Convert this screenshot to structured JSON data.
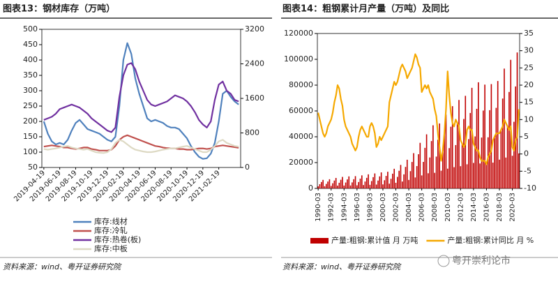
{
  "chart_data": [
    {
      "type": "line",
      "title": "图表13：钢材库存（万吨）",
      "source": "资料来源：wind、粤开证券研究院",
      "legend": "bottom",
      "categories": [
        "2019-04-19",
        null,
        null,
        null,
        "2019-06-19",
        null,
        null,
        null,
        "2019-08-19",
        null,
        null,
        null,
        "2019-10-19",
        null,
        null,
        null,
        "2019-12-19",
        null,
        null,
        null,
        "2020-02-19",
        null,
        null,
        null,
        "2020-04-19",
        null,
        null,
        null,
        "2020-06-19",
        null,
        null,
        null,
        "2020-08-19",
        null,
        null,
        null,
        "2020-10-19",
        null,
        null,
        null,
        "2020-12-19",
        null,
        null,
        null,
        "2021-02-19",
        null,
        null,
        null,
        null,
        null
      ],
      "ylim": [
        50,
        500
      ],
      "yticks": [
        50,
        100,
        150,
        200,
        250,
        300,
        350,
        400,
        450,
        500
      ],
      "y2lim": [
        0,
        3200
      ],
      "y2ticks": [
        0,
        800,
        1600,
        2400,
        3200
      ],
      "series": [
        {
          "name": "库存:线材",
          "color": "#4f81bd",
          "values": [
            200,
            160,
            135,
            125,
            130,
            125,
            140,
            170,
            195,
            205,
            190,
            175,
            170,
            165,
            160,
            150,
            140,
            135,
            150,
            250,
            400,
            455,
            420,
            340,
            290,
            250,
            210,
            200,
            205,
            200,
            195,
            185,
            180,
            180,
            175,
            160,
            145,
            120,
            100,
            85,
            78,
            80,
            95,
            130,
            200,
            290,
            300,
            280,
            265,
            255
          ]
        },
        {
          "name": "库存:冷轧",
          "color": "#c0504d",
          "values": [
            118,
            120,
            122,
            120,
            118,
            115,
            115,
            112,
            110,
            112,
            115,
            115,
            110,
            108,
            105,
            105,
            105,
            108,
            120,
            140,
            150,
            155,
            150,
            145,
            140,
            135,
            130,
            125,
            120,
            118,
            115,
            113,
            112,
            112,
            110,
            110,
            108,
            108,
            110,
            112,
            112,
            110,
            112,
            118,
            120,
            122,
            120,
            118,
            116,
            114
          ]
        },
        {
          "name": "库存:热卷(板)",
          "color": "#7030a0",
          "values": [
            205,
            210,
            215,
            225,
            240,
            245,
            250,
            255,
            250,
            245,
            235,
            225,
            210,
            200,
            190,
            180,
            170,
            165,
            180,
            280,
            350,
            385,
            390,
            370,
            330,
            300,
            270,
            255,
            250,
            255,
            260,
            265,
            275,
            285,
            280,
            275,
            265,
            250,
            230,
            205,
            190,
            180,
            200,
            270,
            320,
            330,
            300,
            290,
            270,
            265
          ]
        },
        {
          "name": "库存:中板",
          "color": "#ddd9c3",
          "values": [
            110,
            108,
            110,
            112,
            115,
            118,
            120,
            115,
            112,
            110,
            108,
            110,
            105,
            100,
            98,
            97,
            100,
            110,
            130,
            140,
            135,
            125,
            115,
            108,
            105,
            102,
            100,
            100,
            102,
            105,
            108,
            110,
            112,
            112,
            115,
            118,
            120,
            115,
            110,
            105,
            100,
            100,
            108,
            120,
            135,
            140,
            130,
            125,
            120,
            118
          ]
        }
      ]
    },
    {
      "type": "bar",
      "title": "图表14：粗钢累计月产量（万吨）及同比",
      "source": "资料来源：wind、粤开证券研究院",
      "legend": "bottom",
      "categories": [
        "1990-03",
        null,
        null,
        null,
        null,
        null,
        null,
        null,
        "1992-03",
        null,
        null,
        null,
        null,
        null,
        null,
        null,
        "1994-03",
        null,
        null,
        null,
        null,
        null,
        null,
        null,
        "1996-03",
        null,
        null,
        null,
        null,
        null,
        null,
        null,
        "1998-03",
        null,
        null,
        null,
        null,
        null,
        null,
        null,
        "2000-03",
        null,
        null,
        null,
        null,
        null,
        null,
        null,
        "2002-03",
        null,
        null,
        null,
        null,
        null,
        null,
        null,
        "2004-03",
        null,
        null,
        null,
        null,
        null,
        null,
        null,
        "2006-03",
        null,
        null,
        null,
        null,
        null,
        null,
        null,
        "2008-03",
        null,
        null,
        null,
        null,
        null,
        null,
        null,
        "2010-03",
        null,
        null,
        null,
        null,
        null,
        null,
        null,
        "2012-03",
        null,
        null,
        null,
        null,
        null,
        null,
        null,
        "2014-03",
        null,
        null,
        null,
        null,
        null,
        null,
        null,
        "2016-03",
        null,
        null,
        null,
        null,
        null,
        null,
        null,
        "2018-03",
        null,
        null,
        null,
        null,
        null,
        null,
        null,
        "2020-03",
        null,
        null,
        null,
        null
      ],
      "ylim": [
        0,
        120000
      ],
      "yticks": [
        0,
        20000,
        40000,
        60000,
        80000,
        100000,
        120000
      ],
      "y2lim": [
        -10,
        35
      ],
      "y2ticks": [
        -10,
        -5,
        0,
        5,
        10,
        15,
        20,
        25,
        30,
        35
      ],
      "series": [
        {
          "name": "产量:粗钢:累计值 月 万吨",
          "color": "#c00000",
          "type": "bar",
          "values": [
            1584,
            3234,
            4950,
            6600,
            1704,
            3479,
            5325,
            7100,
            1944,
            3969,
            6075,
            8100,
            2136,
            4361,
            6675,
            8900,
            2232,
            4557,
            6975,
            9300,
            2280,
            4655,
            7125,
            9500,
            2424,
            4949,
            7575,
            10100,
            2616,
            5341,
            8175,
            10900,
            2784,
            5684,
            8700,
            11600,
            2976,
            6076,
            9300,
            12400,
            3096,
            6321,
            9675,
            12900,
            3648,
            7448,
            11400,
            15200,
            4368,
            8918,
            13650,
            18200,
            5328,
            10878,
            16650,
            22200,
            6552,
            13377,
            20475,
            27300,
            8472,
            17297,
            26475,
            35300,
            10056,
            20531,
            31425,
            41900,
            11736,
            23961,
            36675,
            48900,
            12072,
            24647,
            37725,
            50300,
            13728,
            28028,
            42900,
            57200,
            15288,
            31213,
            47775,
            63700,
            16440,
            33565,
            51375,
            68500,
            17208,
            35133,
            53775,
            71700,
            18696,
            38171,
            58425,
            77900,
            19728,
            40278,
            61650,
            82200,
            19296,
            39396,
            60300,
            80400,
            19392,
            39592,
            60600,
            80800,
            19968,
            40768,
            62400,
            83200,
            22272,
            45472,
            69600,
            92800,
            23904,
            48804,
            74700,
            99600,
            25272,
            51597,
            78975,
            105300,
            27100
          ]
        },
        {
          "name": "产量:粗钢:累计同比 月 %",
          "color": "#f5a800",
          "type": "line",
          "axis": "y2",
          "values": [
            12,
            10,
            8,
            6,
            5,
            6,
            8,
            9,
            10,
            12,
            15,
            17,
            20,
            19,
            16,
            14,
            10,
            8,
            7,
            6,
            5,
            3,
            2,
            1,
            2,
            5,
            7,
            8,
            7,
            6,
            5,
            5,
            8,
            9,
            8,
            6,
            2,
            3,
            5,
            4,
            5,
            6,
            7,
            8,
            15,
            17,
            19,
            21,
            20,
            21,
            23,
            25,
            26,
            25,
            24,
            22,
            23,
            24,
            25,
            27,
            29,
            28,
            26,
            25,
            18,
            19,
            20,
            19,
            20,
            18,
            17,
            16,
            13,
            11,
            6,
            2,
            -2,
            1,
            6,
            13,
            24,
            17,
            12,
            9,
            8,
            10,
            9,
            8,
            4,
            3,
            2,
            3,
            7,
            8,
            7,
            7,
            3,
            2,
            1,
            1,
            -1,
            -2,
            -2,
            -2,
            -3,
            -1,
            0,
            1,
            4,
            5,
            6,
            6,
            6,
            7,
            8,
            10,
            9,
            8,
            7,
            8,
            2,
            1,
            4,
            5,
            13
          ]
        }
      ]
    }
  ],
  "watermark": "粤开崇利论市"
}
